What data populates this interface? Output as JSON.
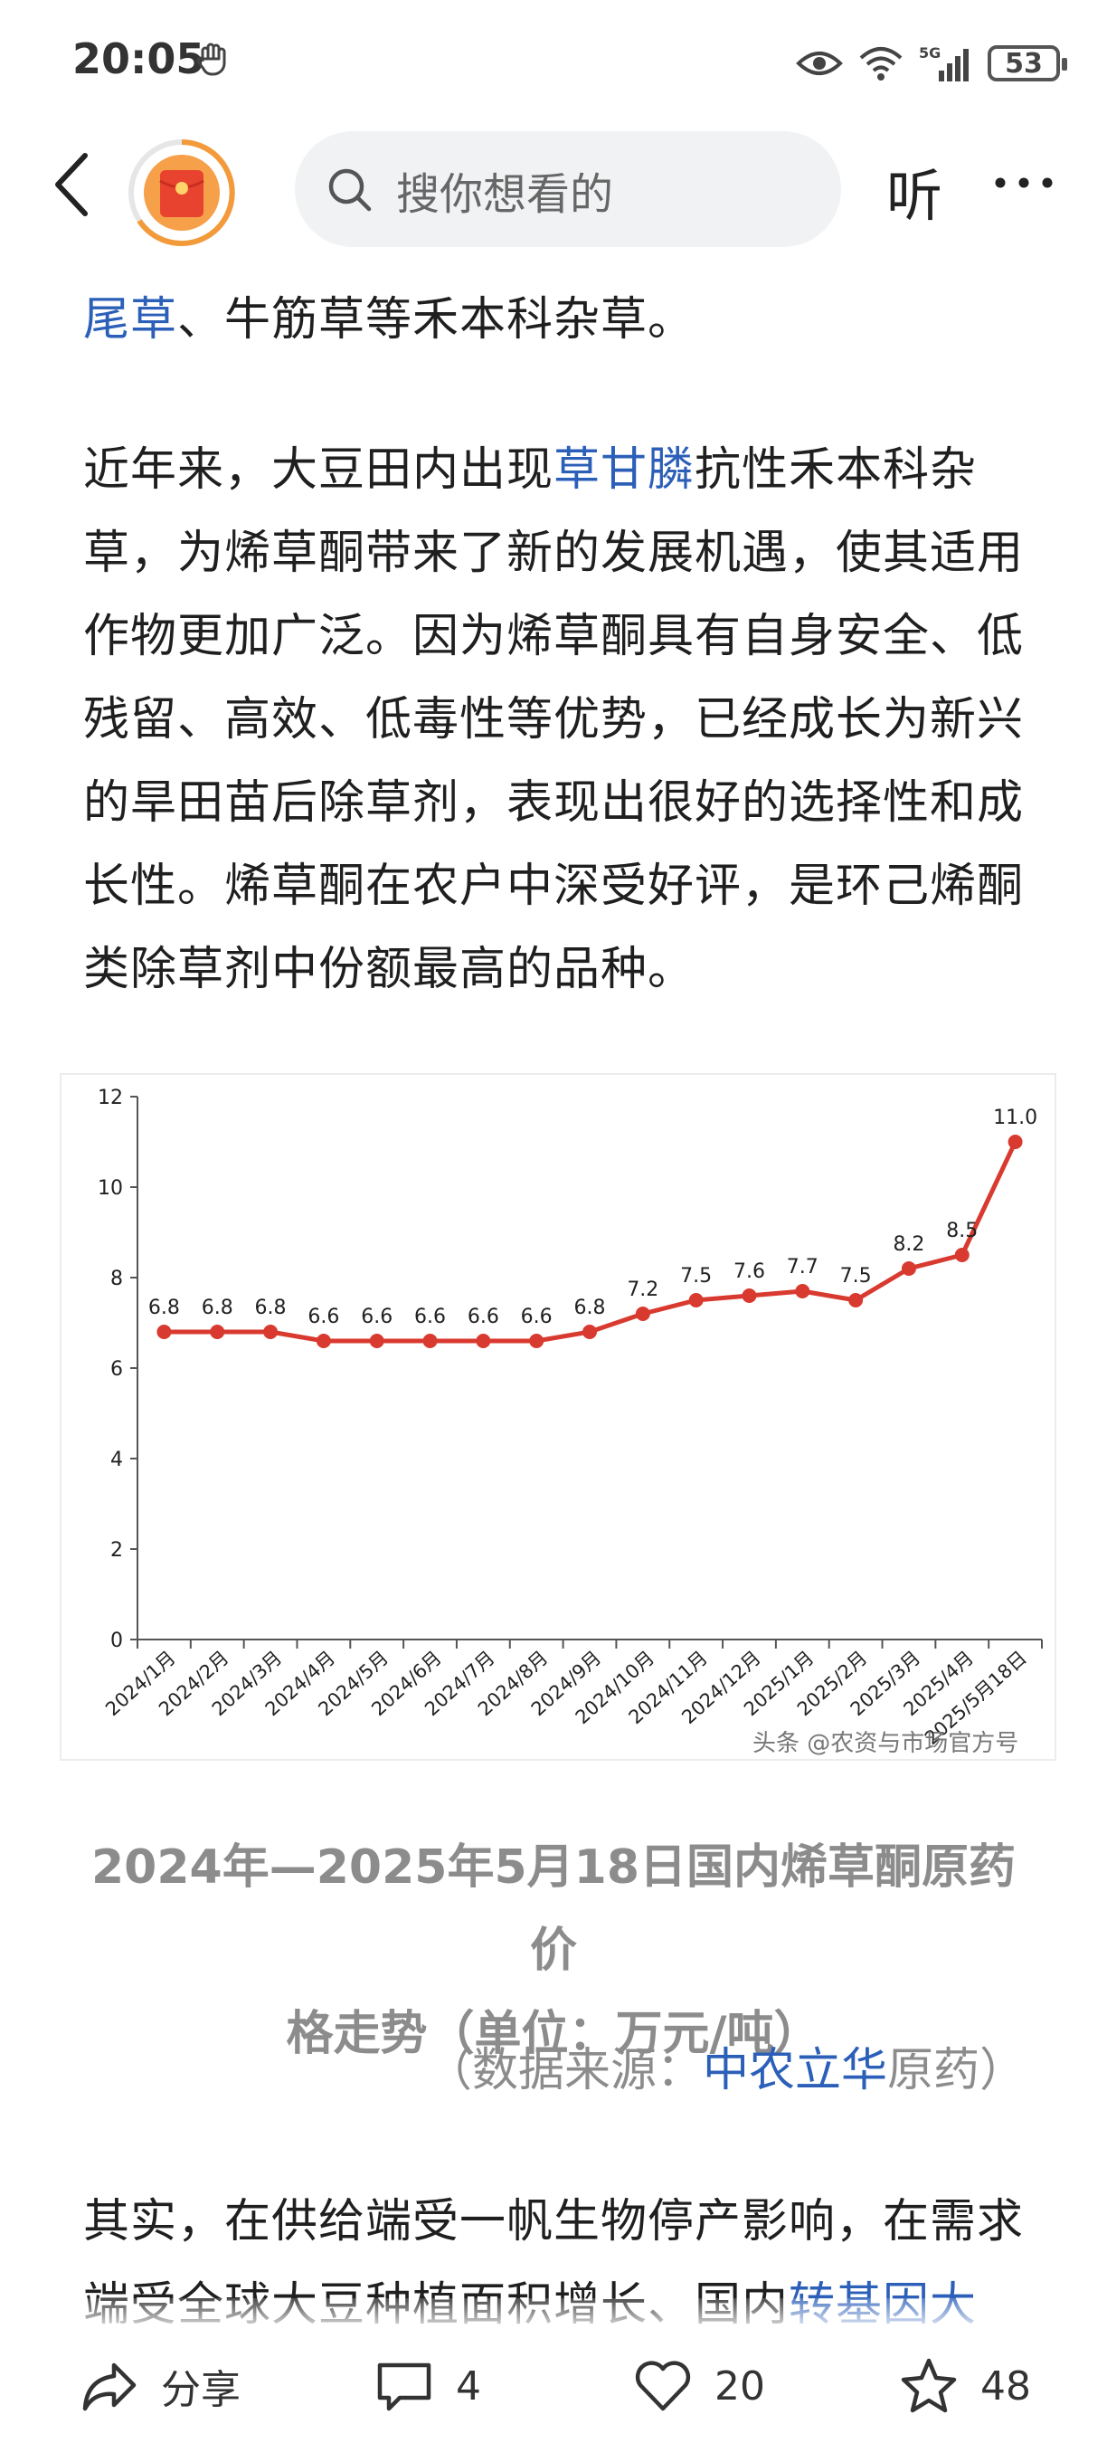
{
  "status_bar": {
    "time": "20:05",
    "network": "5G",
    "battery": "53"
  },
  "nav": {
    "search_placeholder": "搜你想看的",
    "listen_label": "听"
  },
  "article": {
    "line0": {
      "link": "尾草",
      "rest": "、牛筋草等禾本科杂草。"
    },
    "p1": [
      {
        "pre": "近年来，大豆田内出现",
        "link": "草甘膦",
        "post": "抗性禾本科杂"
      },
      {
        "text": "草，为烯草酮带来了新的发展机遇，使其适用"
      },
      {
        "text": "作物更加广泛。因为烯草酮具有自身安全、低"
      },
      {
        "text": "残留、高效、低毒性等优势，已经成长为新兴"
      },
      {
        "text": "的旱田苗后除草剂，表现出很好的选择性和成"
      },
      {
        "text": "长性。烯草酮在农户中深受好评，是环己烯酮"
      },
      {
        "text": "类除草剂中份额最高的品种。"
      }
    ],
    "caption_line1": "2024年—2025年5月18日国内烯草酮原药价",
    "caption_line2": "格走势（单位：万元/吨）",
    "source": {
      "pre": "（数据来源：",
      "link": "中农立华",
      "post": "原药）"
    },
    "p2_line1": "其实，在供给端受一帆生物停产影响，在需求",
    "p2_line2": {
      "pre": "端受全球大豆种植面积增长、国内",
      "link": "转基因大豆"
    }
  },
  "chart_data": {
    "type": "line",
    "categories": [
      "2024/1月",
      "2024/2月",
      "2024/3月",
      "2024/4月",
      "2024/5月",
      "2024/6月",
      "2024/7月",
      "2024/8月",
      "2024/9月",
      "2024/10月",
      "2024/11月",
      "2024/12月",
      "2025/1月",
      "2025/2月",
      "2025/3月",
      "2025/4月",
      "2025/5月18日"
    ],
    "values": [
      6.8,
      6.8,
      6.8,
      6.6,
      6.6,
      6.6,
      6.6,
      6.6,
      6.8,
      7.2,
      7.5,
      7.6,
      7.7,
      7.5,
      8.2,
      8.5,
      11.0
    ],
    "value_labels": [
      "6.8",
      "6.8",
      "6.8",
      "6.6",
      "6.6",
      "6.6",
      "6.6",
      "6.6",
      "6.8",
      "7.2",
      "7.5",
      "7.6",
      "7.7",
      "7.5",
      "8.2",
      "8.5",
      "11.0"
    ],
    "yticks": [
      "0",
      "2",
      "4",
      "6",
      "8",
      "10",
      "12"
    ],
    "ylim": [
      0,
      12
    ],
    "grid": false,
    "line_color": "#d93a2f",
    "watermark": "头条 @农资与市场官方号"
  },
  "bottom_bar": {
    "share_label": "分享",
    "comments": "4",
    "likes": "20",
    "favorites": "48"
  }
}
